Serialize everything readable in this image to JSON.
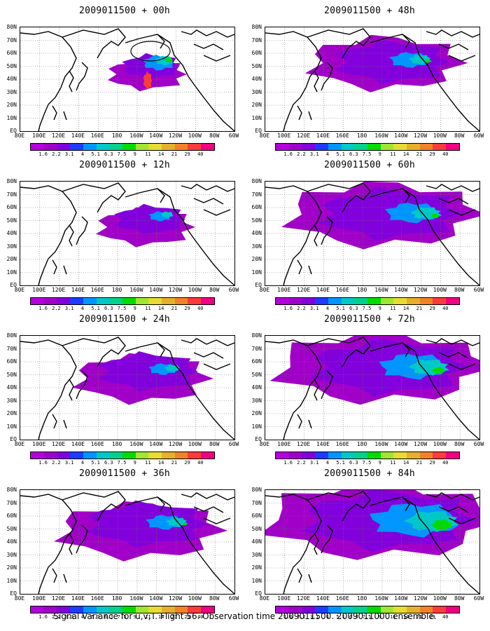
{
  "panels": [
    {
      "title": "2009011500 + 00h",
      "spread": 0.15,
      "intensity": 0.9
    },
    {
      "title": "2009011500 + 12h",
      "spread": 0.25,
      "intensity": 0.5
    },
    {
      "title": "2009011500 + 24h",
      "spread": 0.45,
      "intensity": 0.45
    },
    {
      "title": "2009011500 + 36h",
      "spread": 0.6,
      "intensity": 0.5
    },
    {
      "title": "2009011500 + 48h",
      "spread": 0.55,
      "intensity": 0.55
    },
    {
      "title": "2009011500 + 60h",
      "spread": 0.75,
      "intensity": 0.6
    },
    {
      "title": "2009011500 + 72h",
      "spread": 0.85,
      "intensity": 0.7
    },
    {
      "title": "2009011500 + 84h",
      "spread": 0.95,
      "intensity": 0.85
    }
  ],
  "lat_labels": [
    "80N",
    "70N",
    "60N",
    "50N",
    "40N",
    "30N",
    "20N",
    "10N",
    "EQ"
  ],
  "lon_labels": [
    "80E",
    "100E",
    "120E",
    "140E",
    "160E",
    "180",
    "160W",
    "140W",
    "120W",
    "100W",
    "80W",
    "60W"
  ],
  "colorbar": {
    "labels": [
      "1.6",
      "2.2",
      "3.1",
      "4",
      "5.1",
      "6.3",
      "7.5",
      "9",
      "11",
      "14",
      "21",
      "29",
      "40"
    ],
    "colors": [
      "#a000c8",
      "#8200dc",
      "#1e3cff",
      "#0096ff",
      "#00c8c8",
      "#00d28c",
      "#00dc00",
      "#a0e632",
      "#e6dc32",
      "#e6af2d",
      "#f08228",
      "#fa3c3c",
      "#f00082"
    ]
  },
  "footer": "Signal Variance for u,v,T. Flight 56. Observation time 2009011500. 2009011000 ensemble."
}
